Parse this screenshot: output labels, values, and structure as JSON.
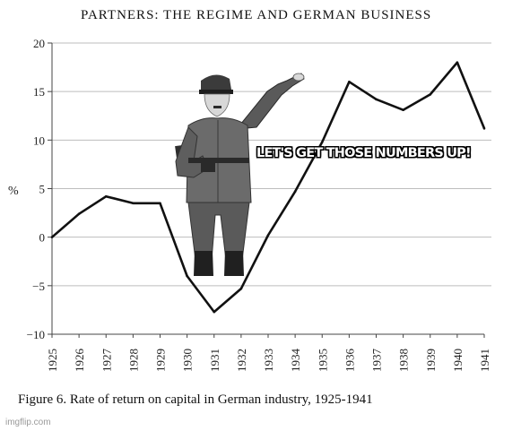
{
  "title": "PARTNERS: THE REGIME AND GERMAN BUSINESS",
  "caption": "Figure 6. Rate of return on capital in German industry, 1925-1941",
  "watermark": "imgflip.com",
  "meme_caption": "LET'S GET THOSE NUMBERS UP!",
  "colors": {
    "line": "#111111",
    "grid": "#bdbdbd",
    "background": "#ffffff"
  },
  "chart_data": {
    "type": "line",
    "title": "PARTNERS: THE REGIME AND GERMAN BUSINESS",
    "xlabel": "",
    "ylabel": "%",
    "x": [
      "1925",
      "1926",
      "1927",
      "1928",
      "1929",
      "1930",
      "1931",
      "1932",
      "1933",
      "1934",
      "1935",
      "1936",
      "1937",
      "1938",
      "1939",
      "1940",
      "1941"
    ],
    "series": [
      {
        "values": [
          0,
          2.4,
          4.2,
          3.5,
          3.5,
          -4,
          -7.7,
          -5.3,
          0.2,
          4.7,
          9.8,
          16,
          14.2,
          13.1,
          14.7,
          18,
          11.2
        ]
      }
    ],
    "yticks": [
      "20",
      "15",
      "10",
      "5",
      "0",
      "−5",
      "−10"
    ],
    "ytick_values": [
      20,
      15,
      10,
      5,
      0,
      -5,
      -10
    ],
    "ylim": [
      -10,
      20
    ],
    "grid": true,
    "legend": "none"
  }
}
